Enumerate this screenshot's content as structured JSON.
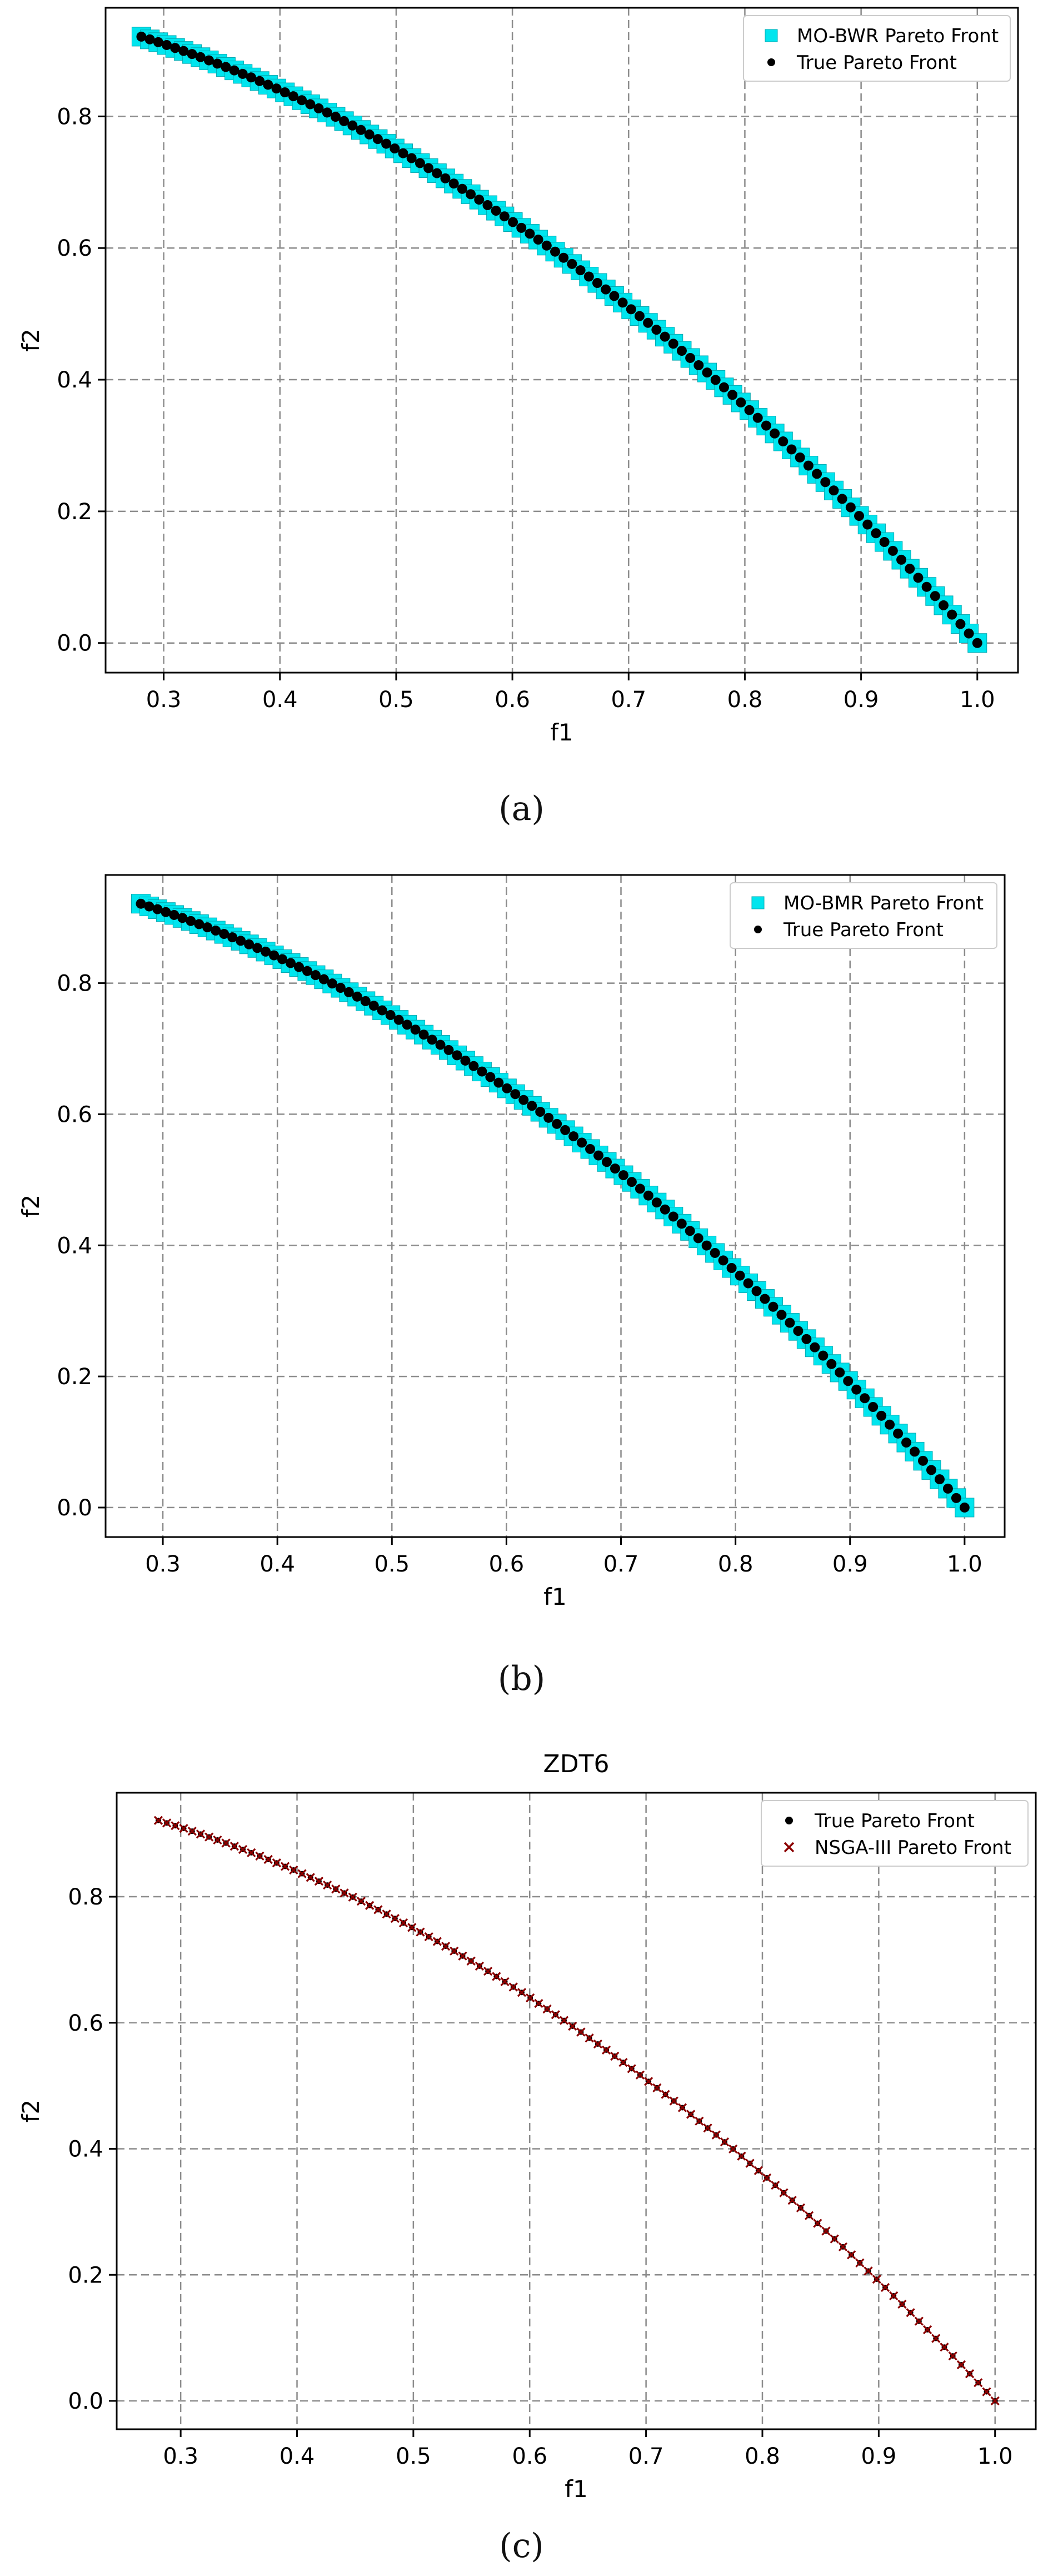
{
  "colors": {
    "cyan": "#00e5ee",
    "black": "#000000",
    "darkred": "#8b0000",
    "grid": "#8c8c8c"
  },
  "captions": [
    "(a)",
    "(b)",
    "(c)"
  ],
  "chart_data": [
    {
      "type": "scatter",
      "title": "",
      "xlabel": "f1",
      "ylabel": "f2",
      "xlim": [
        0.25,
        1.035
      ],
      "ylim": [
        -0.045,
        0.965
      ],
      "xticks": [
        "0.3",
        "0.4",
        "0.5",
        "0.6",
        "0.7",
        "0.8",
        "0.9",
        "1.0"
      ],
      "yticks": [
        "0.0",
        "0.2",
        "0.4",
        "0.6",
        "0.8"
      ],
      "grid": true,
      "legend_position": "top-right",
      "front_function": "f2 = 1 - f1^2",
      "x_range": [
        0.2808,
        1.0
      ],
      "n_points": 100,
      "series": [
        {
          "name": "MO-BWR Pareto Front",
          "marker": "square",
          "color": "cyan"
        },
        {
          "name": "True Pareto Front",
          "marker": "dot",
          "color": "black"
        }
      ]
    },
    {
      "type": "scatter",
      "title": "",
      "xlabel": "f1",
      "ylabel": "f2",
      "xlim": [
        0.25,
        1.035
      ],
      "ylim": [
        -0.045,
        0.965
      ],
      "xticks": [
        "0.3",
        "0.4",
        "0.5",
        "0.6",
        "0.7",
        "0.8",
        "0.9",
        "1.0"
      ],
      "yticks": [
        "0.0",
        "0.2",
        "0.4",
        "0.6",
        "0.8"
      ],
      "grid": true,
      "legend_position": "top-right",
      "front_function": "f2 = 1 - f1^2",
      "x_range": [
        0.2808,
        1.0
      ],
      "n_points": 100,
      "series": [
        {
          "name": "MO-BMR Pareto Front",
          "marker": "square",
          "color": "cyan"
        },
        {
          "name": "True Pareto Front",
          "marker": "dot",
          "color": "black"
        }
      ]
    },
    {
      "type": "scatter",
      "title": "ZDT6",
      "xlabel": "f1",
      "ylabel": "f2",
      "xlim": [
        0.245,
        1.035
      ],
      "ylim": [
        -0.045,
        0.965
      ],
      "xticks": [
        "0.3",
        "0.4",
        "0.5",
        "0.6",
        "0.7",
        "0.8",
        "0.9",
        "1.0"
      ],
      "yticks": [
        "0.0",
        "0.2",
        "0.4",
        "0.6",
        "0.8"
      ],
      "grid": true,
      "legend_position": "top-right",
      "front_function": "f2 = 1 - f1^2",
      "x_range": [
        0.2808,
        1.0
      ],
      "n_points": 100,
      "series": [
        {
          "name": "True Pareto Front",
          "marker": "dot",
          "color": "black"
        },
        {
          "name": "NSGA-III Pareto Front",
          "marker": "x",
          "color": "darkred"
        }
      ]
    }
  ]
}
